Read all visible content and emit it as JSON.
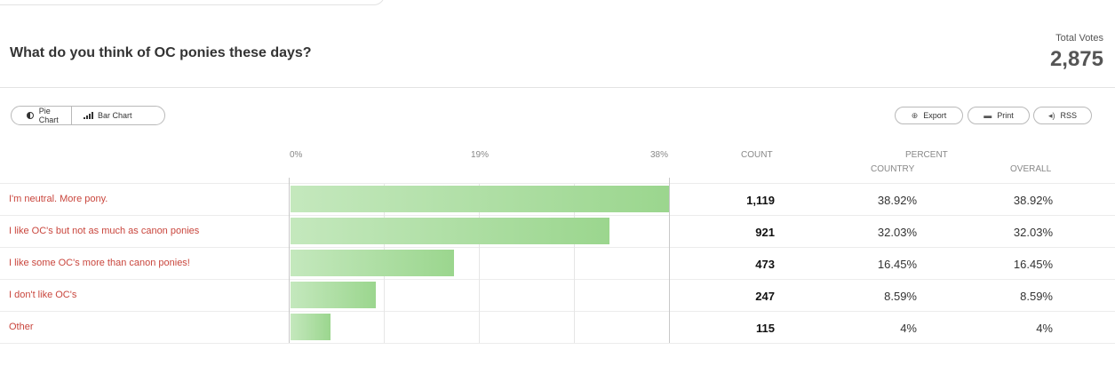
{
  "poll": {
    "question": "What do you think of OC ponies these days?",
    "total_votes_label": "Total Votes",
    "total_votes": "2,875"
  },
  "toolbar": {
    "pie_chart_label": "Pie Chart",
    "bar_chart_label": "Bar Chart",
    "export_label": "Export",
    "print_label": "Print",
    "rss_label": "RSS"
  },
  "table": {
    "axis_ticks": [
      "0%",
      "19%",
      "38%"
    ],
    "count_header": "COUNT",
    "percent_header": "PERCENT",
    "country_header": "COUNTRY",
    "overall_header": "OVERALL",
    "rows": [
      {
        "label": "I'm neutral. More pony.",
        "count": "1,119",
        "country": "38.92%",
        "overall": "38.92%"
      },
      {
        "label": "I like OC's but not as much as canon ponies",
        "count": "921",
        "country": "32.03%",
        "overall": "32.03%"
      },
      {
        "label": "I like some OC's more than canon ponies!",
        "count": "473",
        "country": "16.45%",
        "overall": "16.45%"
      },
      {
        "label": "I don't like OC's",
        "count": "247",
        "country": "8.59%",
        "overall": "8.59%"
      },
      {
        "label": "Other",
        "count": "115",
        "country": "4%",
        "overall": "4%"
      }
    ]
  },
  "chart_data": {
    "type": "bar",
    "orientation": "horizontal",
    "categories": [
      "I'm neutral. More pony.",
      "I like OC's but not as much as canon ponies",
      "I like some OC's more than canon ponies!",
      "I don't like OC's",
      "Other"
    ],
    "values": [
      38.92,
      32.03,
      16.45,
      8.59,
      4
    ],
    "counts": [
      1119,
      921,
      473,
      247,
      115
    ],
    "xlim": [
      0,
      38
    ],
    "xticks": [
      "0%",
      "19%",
      "38%"
    ],
    "grid": true,
    "bar_color": "#9bd68e"
  }
}
